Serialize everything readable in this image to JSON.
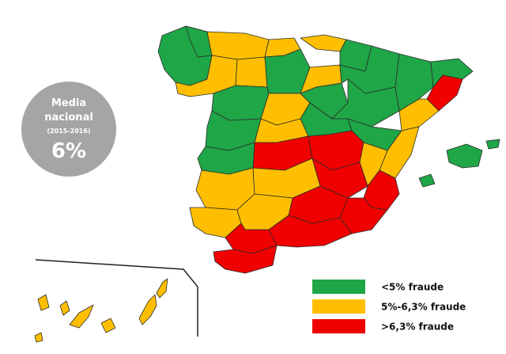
{
  "badge": {
    "lines": [
      "Media",
      "nacional"
    ],
    "period": "(2015-2016)",
    "value": "6%"
  },
  "legend": [
    {
      "label": "<5% fraude",
      "color": "#1fa647"
    },
    {
      "label": "5%-6,3% fraude",
      "color": "#ffbf00"
    },
    {
      "label": ">6,3% fraude",
      "color": "#f00000"
    }
  ]
}
